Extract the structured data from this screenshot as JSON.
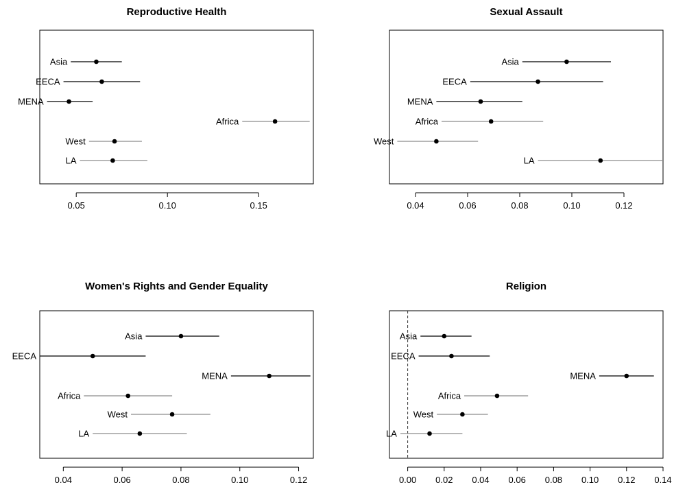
{
  "chart_data": [
    {
      "type": "scatter",
      "title": "Reproductive Health",
      "xlim": [
        0.03,
        0.18
      ],
      "xticks": [
        "0.05",
        "0.10",
        "0.15"
      ],
      "xtick_values": [
        0.05,
        0.1,
        0.15
      ],
      "reference_line": null,
      "points": [
        {
          "label": "Asia",
          "value": 0.061,
          "low": 0.047,
          "high": 0.075,
          "color": "#000000"
        },
        {
          "label": "EECA",
          "value": 0.064,
          "low": 0.043,
          "high": 0.085,
          "color": "#000000"
        },
        {
          "label": "MENA",
          "value": 0.046,
          "low": 0.034,
          "high": 0.059,
          "color": "#000000"
        },
        {
          "label": "Africa",
          "value": 0.159,
          "low": 0.141,
          "high": 0.178,
          "color": "#8c8c8c"
        },
        {
          "label": "West",
          "value": 0.071,
          "low": 0.057,
          "high": 0.086,
          "color": "#8c8c8c"
        },
        {
          "label": "LA",
          "value": 0.07,
          "low": 0.052,
          "high": 0.089,
          "color": "#8c8c8c"
        }
      ]
    },
    {
      "type": "scatter",
      "title": "Sexual Assault",
      "xlim": [
        0.03,
        0.135
      ],
      "xticks": [
        "0.04",
        "0.06",
        "0.08",
        "0.10",
        "0.12"
      ],
      "xtick_values": [
        0.04,
        0.06,
        0.08,
        0.1,
        0.12
      ],
      "reference_line": null,
      "points": [
        {
          "label": "Asia",
          "value": 0.098,
          "low": 0.081,
          "high": 0.115,
          "color": "#000000"
        },
        {
          "label": "EECA",
          "value": 0.087,
          "low": 0.061,
          "high": 0.112,
          "color": "#000000"
        },
        {
          "label": "MENA",
          "value": 0.065,
          "low": 0.048,
          "high": 0.081,
          "color": "#000000"
        },
        {
          "label": "Africa",
          "value": 0.069,
          "low": 0.05,
          "high": 0.089,
          "color": "#8c8c8c"
        },
        {
          "label": "West",
          "value": 0.048,
          "low": 0.033,
          "high": 0.064,
          "color": "#8c8c8c"
        },
        {
          "label": "LA",
          "value": 0.111,
          "low": 0.087,
          "high": 0.135,
          "color": "#8c8c8c"
        }
      ]
    },
    {
      "type": "scatter",
      "title": "Women's Rights and Gender Equality",
      "xlim": [
        0.032,
        0.125
      ],
      "xticks": [
        "0.04",
        "0.06",
        "0.08",
        "0.10",
        "0.12"
      ],
      "xtick_values": [
        0.04,
        0.06,
        0.08,
        0.1,
        0.12
      ],
      "reference_line": null,
      "points": [
        {
          "label": "Asia",
          "value": 0.08,
          "low": 0.068,
          "high": 0.093,
          "color": "#000000"
        },
        {
          "label": "EECA",
          "value": 0.05,
          "low": 0.032,
          "high": 0.068,
          "color": "#000000"
        },
        {
          "label": "MENA",
          "value": 0.11,
          "low": 0.097,
          "high": 0.124,
          "color": "#000000"
        },
        {
          "label": "Africa",
          "value": 0.062,
          "low": 0.047,
          "high": 0.077,
          "color": "#8c8c8c"
        },
        {
          "label": "West",
          "value": 0.077,
          "low": 0.063,
          "high": 0.09,
          "color": "#8c8c8c"
        },
        {
          "label": "LA",
          "value": 0.066,
          "low": 0.05,
          "high": 0.082,
          "color": "#8c8c8c"
        }
      ]
    },
    {
      "type": "scatter",
      "title": "Religion",
      "xlim": [
        -0.01,
        0.14
      ],
      "xticks": [
        "0.00",
        "0.02",
        "0.04",
        "0.06",
        "0.08",
        "0.10",
        "0.12",
        "0.14"
      ],
      "xtick_values": [
        0.0,
        0.02,
        0.04,
        0.06,
        0.08,
        0.1,
        0.12,
        0.14
      ],
      "reference_line": 0,
      "points": [
        {
          "label": "Asia",
          "value": 0.02,
          "low": 0.007,
          "high": 0.035,
          "color": "#000000"
        },
        {
          "label": "EECA",
          "value": 0.024,
          "low": 0.006,
          "high": 0.045,
          "color": "#000000"
        },
        {
          "label": "MENA",
          "value": 0.12,
          "low": 0.105,
          "high": 0.135,
          "color": "#000000"
        },
        {
          "label": "Africa",
          "value": 0.049,
          "low": 0.031,
          "high": 0.066,
          "color": "#8c8c8c"
        },
        {
          "label": "West",
          "value": 0.03,
          "low": 0.016,
          "high": 0.044,
          "color": "#8c8c8c"
        },
        {
          "label": "LA",
          "value": 0.012,
          "low": -0.004,
          "high": 0.03,
          "color": "#8c8c8c"
        }
      ]
    }
  ]
}
